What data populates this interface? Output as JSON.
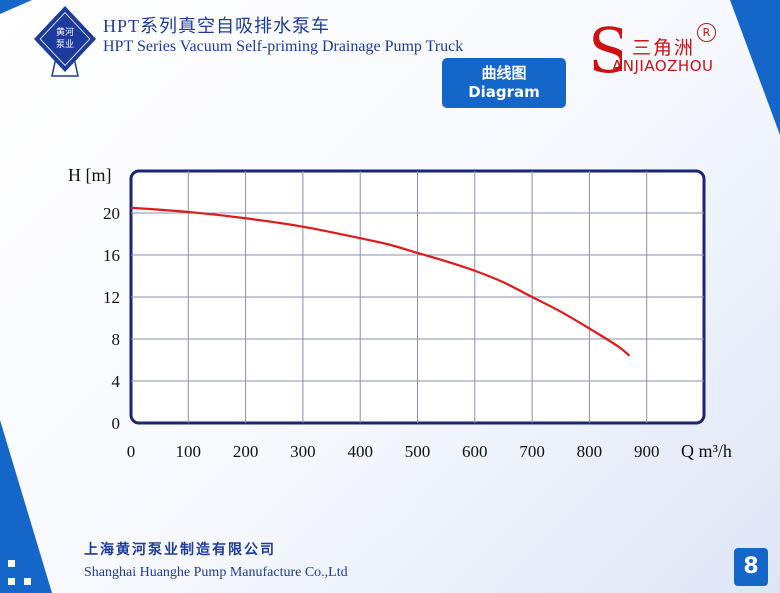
{
  "header": {
    "logo_text_line1": "黄河",
    "logo_text_line2": "泵业",
    "title_cn": "HPT系列真空自吸排水泵车",
    "title_en": "HPT Series Vacuum Self-priming Drainage Pump Truck"
  },
  "brand": {
    "letter": "S",
    "name_cn": "三角洲",
    "name_en": "ANJIAOZHOU",
    "registered": "R"
  },
  "diagram_button": {
    "label_cn": "曲线图",
    "label_en": "Diagram"
  },
  "chart_data": {
    "type": "line",
    "title": "",
    "xlabel": "Q m³/h",
    "ylabel": "H [m]",
    "xlim": [
      0,
      1000
    ],
    "ylim": [
      0,
      24
    ],
    "x_ticks": [
      0,
      100,
      200,
      300,
      400,
      500,
      600,
      700,
      800,
      900
    ],
    "y_ticks": [
      0,
      4,
      8,
      12,
      16,
      20
    ],
    "grid": true,
    "series": [
      {
        "x": [
          0,
          100,
          200,
          300,
          400,
          450,
          500,
          550,
          600,
          650,
          700,
          750,
          800,
          850,
          870
        ],
        "y": [
          20.5,
          20.1,
          19.5,
          18.7,
          17.6,
          17.0,
          16.2,
          15.4,
          14.5,
          13.4,
          12.0,
          10.6,
          9.0,
          7.3,
          6.4
        ]
      }
    ],
    "colors": {
      "frame": "#1a2673",
      "grid": "#8a90b4",
      "curve": "#e01a1a"
    }
  },
  "footer": {
    "company_cn": "上海黄河泵业制造有限公司",
    "company_en": "Shanghai Huanghe Pump Manufacture Co.,Ltd"
  },
  "page": {
    "number": "8"
  },
  "theme": {
    "accent": "#1566c9",
    "text_blue": "#1d3b9c",
    "brand_red": "#cc1111"
  }
}
